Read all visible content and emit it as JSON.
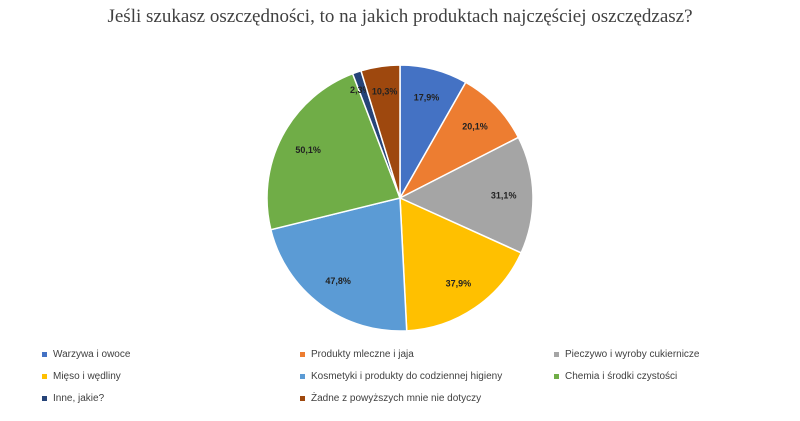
{
  "chart_data": {
    "type": "pie",
    "title": "Jeśli szukasz oszczędności, to na jakich produktach najczęściej oszczędzasz?",
    "legend_position": "bottom",
    "slices": [
      {
        "name": "Warzywa i owoce",
        "value": 17.9,
        "label": "17,9%",
        "color": "#4472C4"
      },
      {
        "name": "Produkty mleczne i jaja",
        "value": 20.1,
        "label": "20,1%",
        "color": "#ED7D31"
      },
      {
        "name": "Pieczywo i wyroby cukiernicze",
        "value": 31.1,
        "label": "31,1%",
        "color": "#A5A5A5"
      },
      {
        "name": "Mięso i wędliny",
        "value": 37.9,
        "label": "37,9%",
        "color": "#FFC000"
      },
      {
        "name": "Kosmetyki i produkty do codziennej higieny",
        "value": 47.8,
        "label": "47,8%",
        "color": "#5B9BD5"
      },
      {
        "name": "Chemia i środki czystości",
        "value": 50.1,
        "label": "50,1%",
        "color": "#70AD47"
      },
      {
        "name": "Inne, jakie?",
        "value": 2.3,
        "label": "2,3%",
        "color": "#264478"
      },
      {
        "name": "Żadne z powyższych mnie nie dotyczy",
        "value": 10.3,
        "label": "10,3%",
        "color": "#9E480E"
      }
    ]
  }
}
